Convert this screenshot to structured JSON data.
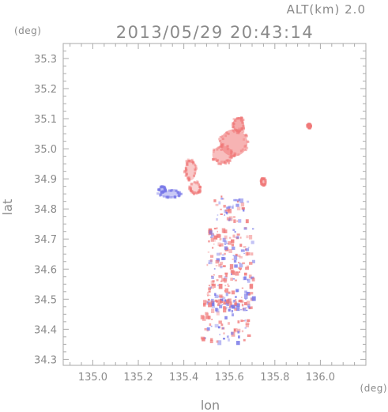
{
  "header": {
    "alt_text": "ALT(km)  2.0",
    "datetime": "2013/05/29 20:43:14"
  },
  "chart_data": {
    "type": "heatmap",
    "title": "2013/05/29 20:43:14",
    "xlabel": "lon",
    "ylabel": "lat",
    "x_unit": "(deg)",
    "y_unit": "(deg)",
    "xlim": [
      134.87,
      136.2
    ],
    "ylim": [
      34.28,
      35.35
    ],
    "x_ticks": [
      135.0,
      135.2,
      135.4,
      135.6,
      135.8,
      136.0
    ],
    "x_tick_labels": [
      "135.0",
      "135.2",
      "135.4",
      "135.6",
      "135.8",
      "136.0"
    ],
    "y_ticks": [
      34.3,
      34.4,
      34.5,
      34.6,
      34.7,
      34.8,
      34.9,
      35.0,
      35.1,
      35.2,
      35.3
    ],
    "y_tick_labels": [
      "34.3",
      "34.4",
      "34.5",
      "34.6",
      "34.7",
      "34.8",
      "34.9",
      "35.0",
      "35.1",
      "35.2",
      "35.3"
    ],
    "grid": false,
    "colors": {
      "positive": "#f07878",
      "negative": "#7878e8",
      "axis": "#aaaaaa",
      "text": "#8a8a8a"
    },
    "regions": [
      {
        "lon": 135.62,
        "lat": 35.02,
        "rx": 0.06,
        "ry": 0.045,
        "value": 0.35
      },
      {
        "lon": 135.57,
        "lat": 34.98,
        "rx": 0.045,
        "ry": 0.03,
        "value": 0.3
      },
      {
        "lon": 135.64,
        "lat": 35.08,
        "rx": 0.025,
        "ry": 0.025,
        "value": 0.4
      },
      {
        "lon": 135.43,
        "lat": 34.93,
        "rx": 0.025,
        "ry": 0.035,
        "value": 0.25
      },
      {
        "lon": 135.45,
        "lat": 34.87,
        "rx": 0.025,
        "ry": 0.02,
        "value": 0.2
      },
      {
        "lon": 135.34,
        "lat": 34.85,
        "rx": 0.05,
        "ry": 0.012,
        "value": -0.25
      },
      {
        "lon": 135.305,
        "lat": 34.865,
        "rx": 0.015,
        "ry": 0.01,
        "value": -0.3
      },
      {
        "lon": 135.75,
        "lat": 34.89,
        "rx": 0.012,
        "ry": 0.012,
        "value": 0.3
      },
      {
        "lon": 135.95,
        "lat": 35.075,
        "rx": 0.008,
        "ry": 0.007,
        "value": 0.3
      }
    ],
    "speckle_areas": [
      {
        "lon0": 135.5,
        "lon1": 135.7,
        "lat0": 34.47,
        "lat1": 34.74,
        "count": 230
      },
      {
        "lon0": 135.47,
        "lon1": 135.68,
        "lat0": 34.36,
        "lat1": 34.5,
        "count": 90
      },
      {
        "lon0": 135.53,
        "lon1": 135.68,
        "lat0": 34.76,
        "lat1": 34.85,
        "count": 45
      }
    ]
  }
}
